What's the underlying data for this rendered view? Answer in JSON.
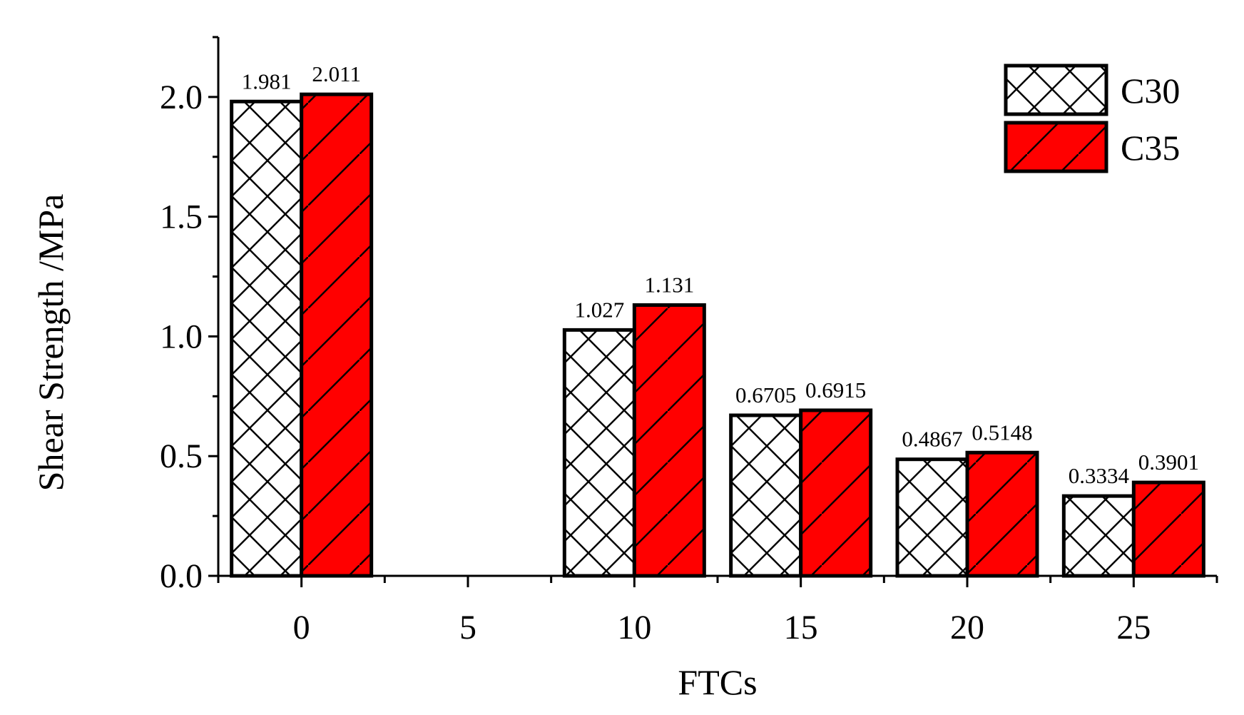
{
  "chart_data": {
    "type": "bar",
    "title": "",
    "xlabel": "FTCs",
    "ylabel": "Shear Strength /MPa",
    "categories": [
      "0",
      "5",
      "10",
      "15",
      "20",
      "25"
    ],
    "x": [
      0,
      5,
      10,
      15,
      20,
      25
    ],
    "xlim": [
      -2.5,
      27.5
    ],
    "ylim": [
      0,
      2.25
    ],
    "yticks": [
      0.0,
      0.5,
      1.0,
      1.5,
      2.0
    ],
    "ytick_labels": [
      "0.0",
      "0.5",
      "1.0",
      "1.5",
      "2.0"
    ],
    "grid": false,
    "legend_position": "top-right",
    "series": [
      {
        "name": "C30",
        "color": "#ffffff",
        "pattern": "crosshatch",
        "values": [
          1.981,
          null,
          1.027,
          0.6705,
          0.4867,
          0.3334
        ],
        "labels": [
          "1.981",
          "",
          "1.027",
          "0.6705",
          "0.4867",
          "0.3334"
        ]
      },
      {
        "name": "C35",
        "color": "#ff0000",
        "pattern": "diagonal",
        "values": [
          2.011,
          null,
          1.131,
          0.6915,
          0.5148,
          0.3901
        ],
        "labels": [
          "2.011",
          "",
          "1.131",
          "0.6915",
          "0.5148",
          "0.3901"
        ]
      }
    ]
  }
}
